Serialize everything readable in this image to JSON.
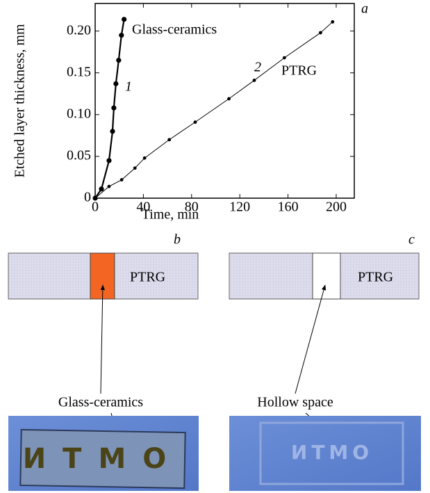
{
  "chart_data": {
    "type": "line",
    "panel_letter": "a",
    "xlabel": "Time, min",
    "ylabel": "Etched layer thickness, mm",
    "xlim": [
      0,
      215
    ],
    "ylim": [
      0,
      0.233
    ],
    "xticks": [
      0,
      40,
      80,
      120,
      160,
      200
    ],
    "yticks": [
      0,
      0.05,
      {
        "value": 0.1,
        "label": "0.10"
      },
      0.15,
      {
        "value": 0.2,
        "label": "0.20"
      }
    ],
    "series": [
      {
        "name": "Glass-ceramics",
        "color": "#000000",
        "x": [
          0,
          5.2,
          11.5,
          14.4,
          15.5,
          17.2,
          19.5,
          21.8,
          24
        ],
        "values": [
          0,
          0.011,
          0.045,
          0.08,
          0.108,
          0.137,
          0.165,
          0.195,
          0.214
        ]
      },
      {
        "name": "PTRG",
        "color": "#000000",
        "x": [
          0,
          11.5,
          22,
          33,
          41,
          61.5,
          83,
          111,
          132,
          157,
          187,
          197
        ],
        "values": [
          0,
          0.014,
          0.022,
          0.036,
          0.048,
          0.07,
          0.091,
          0.119,
          0.141,
          0.168,
          0.198,
          0.211
        ]
      }
    ],
    "annotations": [
      "1",
      "2"
    ]
  },
  "panel_b": {
    "letter": "b",
    "material": "PTRG",
    "insert": "Glass-ceramics",
    "photo_text": "ИТМО"
  },
  "panel_c": {
    "letter": "c",
    "material": "PTRG",
    "insert": "Hollow space",
    "photo_text": "ИТМО"
  }
}
